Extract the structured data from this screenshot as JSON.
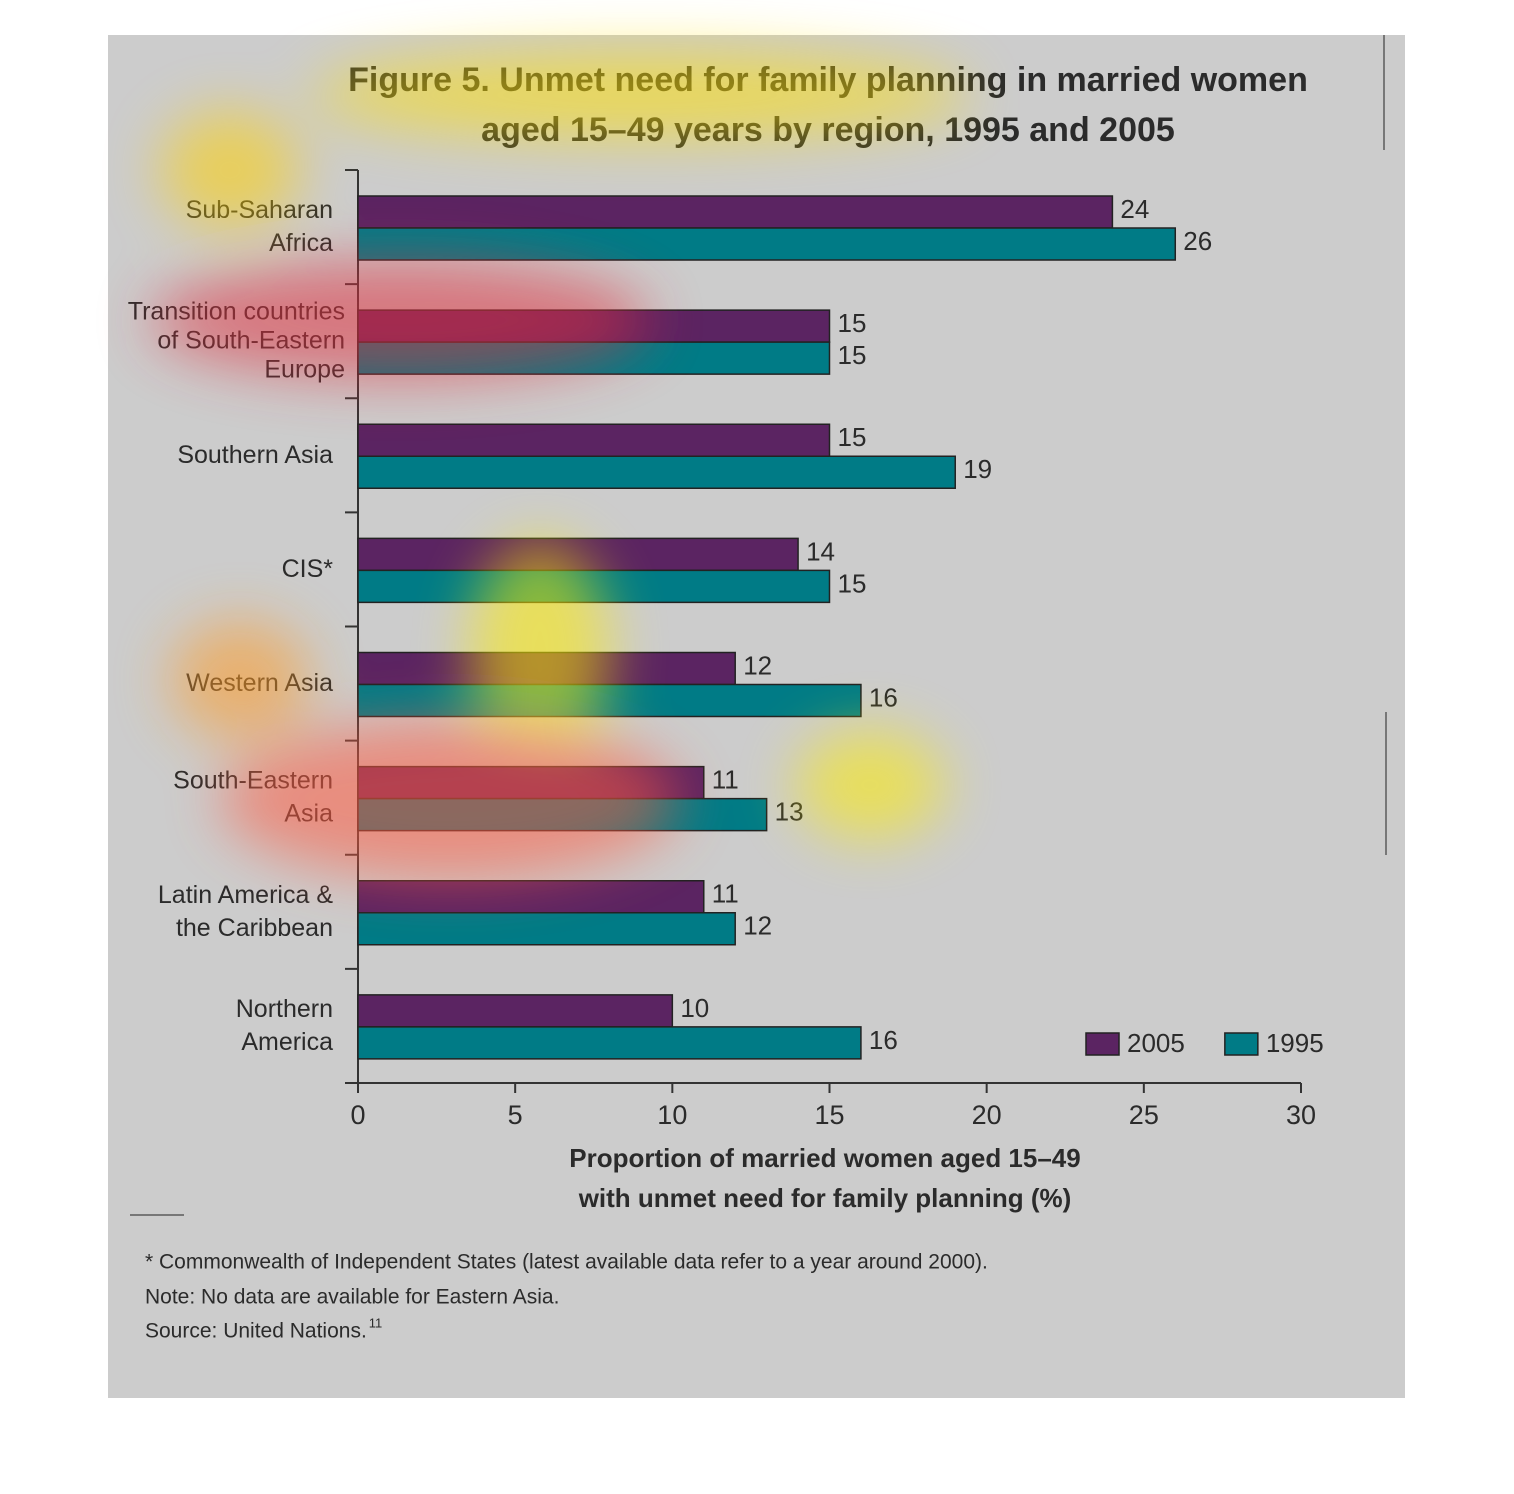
{
  "chart_data": {
    "type": "bar",
    "orientation": "horizontal",
    "title": [
      "Figure 5. Unmet need for family planning in married women",
      "aged 15–49 years by region, 1995 and 2005"
    ],
    "categories": [
      [
        "Sub-Saharan",
        "Africa"
      ],
      [
        "Transition countries",
        "of South-Eastern",
        "Europe"
      ],
      [
        "Southern Asia"
      ],
      [
        "CIS*"
      ],
      [
        "Western Asia"
      ],
      [
        "South-Eastern",
        "Asia"
      ],
      [
        "Latin America &",
        "the Caribbean"
      ],
      [
        "Northern",
        "America"
      ]
    ],
    "series": [
      {
        "name": "2005",
        "color": "#5b2462",
        "values": [
          24,
          15,
          15,
          14,
          12,
          11,
          11,
          10
        ]
      },
      {
        "name": "1995",
        "color": "#007b86",
        "values": [
          26,
          15,
          19,
          15,
          16,
          13,
          12,
          16
        ]
      }
    ],
    "xlim": [
      0,
      30
    ],
    "xticks": [
      0,
      5,
      10,
      15,
      20,
      25,
      30
    ],
    "xlabel": [
      "Proportion of married women aged 15–49",
      "with unmet need for family planning (%)"
    ],
    "legend": "lower right",
    "notes": [
      "* Commonwealth of Independent States (latest available data refer to a year around 2000).",
      "Note: No data are available for Eastern Asia."
    ],
    "source": {
      "text": "Source: United Nations.",
      "ref": "11"
    }
  }
}
